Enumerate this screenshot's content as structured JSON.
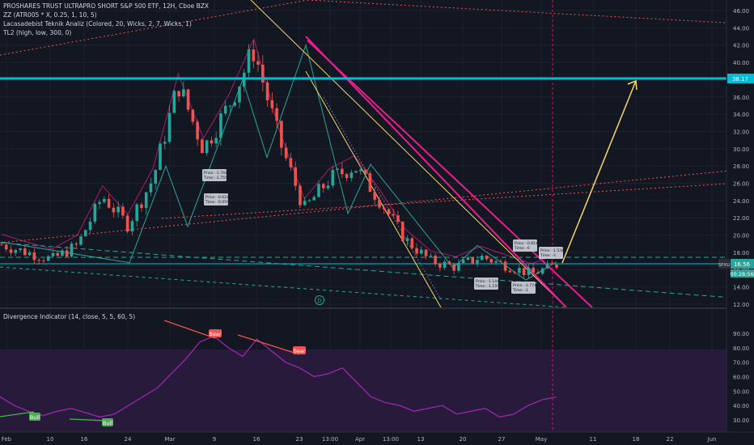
{
  "header": {
    "title_line": "PROSHARES TRUST ULTRAPRO SHORT S&P 500 ETF, 12H, Cboe BZX",
    "indicator_1": "ZZ (ATR005 * X, 0.25, 1, 10, 5)",
    "indicator_2": "Lacasadebist Teknik Analiz  (Colored, 20, Wicks, 2, 7, Wicks, 1)",
    "indicator_3": "TL2 (high, low, 300, 0)",
    "oscillator": "Divergence Indicator (14, close, 5, 5, 60, 5)"
  },
  "price_axis": {
    "ticks": [
      "46.00",
      "44.00",
      "42.00",
      "40.00",
      "38.00",
      "36.00",
      "34.00",
      "32.00",
      "30.00",
      "28.00",
      "26.00",
      "24.00",
      "22.00",
      "20.00",
      "18.00",
      "16.00",
      "14.00",
      "12.00"
    ],
    "horizontal_level_label": "38.17",
    "symbol_tag": "SPXU",
    "last_price": "16.56",
    "countdown": "00:28:56"
  },
  "osc_axis": {
    "ticks": [
      "90.00",
      "80.00",
      "70.00",
      "60.00",
      "50.00",
      "40.00",
      "30.00"
    ]
  },
  "time_axis": {
    "ticks": [
      "Feb",
      "10",
      "16",
      "24",
      "Mar",
      "9",
      "16",
      "23",
      "13:00",
      "Apr",
      "13:00",
      "13",
      "20",
      "27",
      "May",
      "11",
      "18",
      "22",
      "Jun"
    ]
  },
  "labels": {
    "bear_1": "Bear",
    "bear_2": "Bear",
    "bull_1": "Bull",
    "bull_2": "Bull",
    "marker_d": "D"
  },
  "price_annotations": [
    {
      "text": "Price: -1.74$",
      "sub": "Time: -1.75%"
    },
    {
      "text": "Price: -0.62$",
      "sub": "Time: -0.05%"
    },
    {
      "text": "Price: -0.81$",
      "sub": "Time: -6"
    },
    {
      "text": "Price: -1.53$",
      "sub": "Time: -3"
    },
    {
      "text": "Price: -1.14$",
      "sub": "Time: -1.15%"
    },
    {
      "text": "Price: -1.77$",
      "sub": "Time: -1"
    }
  ],
  "colors": {
    "background": "#131722",
    "up": "#26a69a",
    "down": "#ef5350",
    "level_line": "#00bcd4",
    "magenta_trend": "#e91e8c",
    "yellow_projection": "#f5d76e",
    "rsi_line": "#9c27b0",
    "bear_label": "#ef5350",
    "bull_label": "#4caf50"
  },
  "chart_data": {
    "type": "candlestick",
    "symbol": "SPXU",
    "timeframe": "12H",
    "ylim": [
      11.5,
      46.5
    ],
    "level": 38.17,
    "last": 16.56,
    "close_path": [
      {
        "t": "Feb 1",
        "close": 18.9
      },
      {
        "t": "Feb 10",
        "close": 18.0
      },
      {
        "t": "Feb 16",
        "close": 17.2
      },
      {
        "t": "Feb 24",
        "close": 18.8
      },
      {
        "t": "Feb 28",
        "close": 24.5
      },
      {
        "t": "Mar 2",
        "close": 21.2
      },
      {
        "t": "Mar 9",
        "close": 26.5
      },
      {
        "t": "Mar 12",
        "close": 37.5
      },
      {
        "t": "Mar 16",
        "close": 30.0
      },
      {
        "t": "Mar 19",
        "close": 35.0
      },
      {
        "t": "Mar 23",
        "close": 41.5
      },
      {
        "t": "Mar 26",
        "close": 31.0
      },
      {
        "t": "Mar 30",
        "close": 23.0
      },
      {
        "t": "Apr 3",
        "close": 26.5
      },
      {
        "t": "Apr 6",
        "close": 28.0
      },
      {
        "t": "Apr 10",
        "close": 24.0
      },
      {
        "t": "Apr 13",
        "close": 19.5
      },
      {
        "t": "Apr 17",
        "close": 17.0
      },
      {
        "t": "Apr 20",
        "close": 16.3
      },
      {
        "t": "Apr 24",
        "close": 17.5
      },
      {
        "t": "Apr 27",
        "close": 16.5
      },
      {
        "t": "Apr 30",
        "close": 15.5
      },
      {
        "t": "May 1",
        "close": 16.56
      }
    ],
    "projection": [
      {
        "t": "May 1",
        "value": 16.56
      },
      {
        "t": "May 18",
        "value": 38.17
      }
    ],
    "oscillator": {
      "name": "Divergence Indicator",
      "ylim": [
        25,
        92
      ],
      "overbought": 70,
      "values": [
        46,
        40,
        36,
        33,
        36,
        38,
        35,
        32,
        34,
        40,
        46,
        52,
        62,
        72,
        84,
        88,
        80,
        74,
        86,
        78,
        70,
        66,
        60,
        62,
        66,
        56,
        46,
        42,
        40,
        36,
        38,
        40,
        34,
        36,
        38,
        32,
        34,
        40,
        44,
        46
      ]
    }
  }
}
